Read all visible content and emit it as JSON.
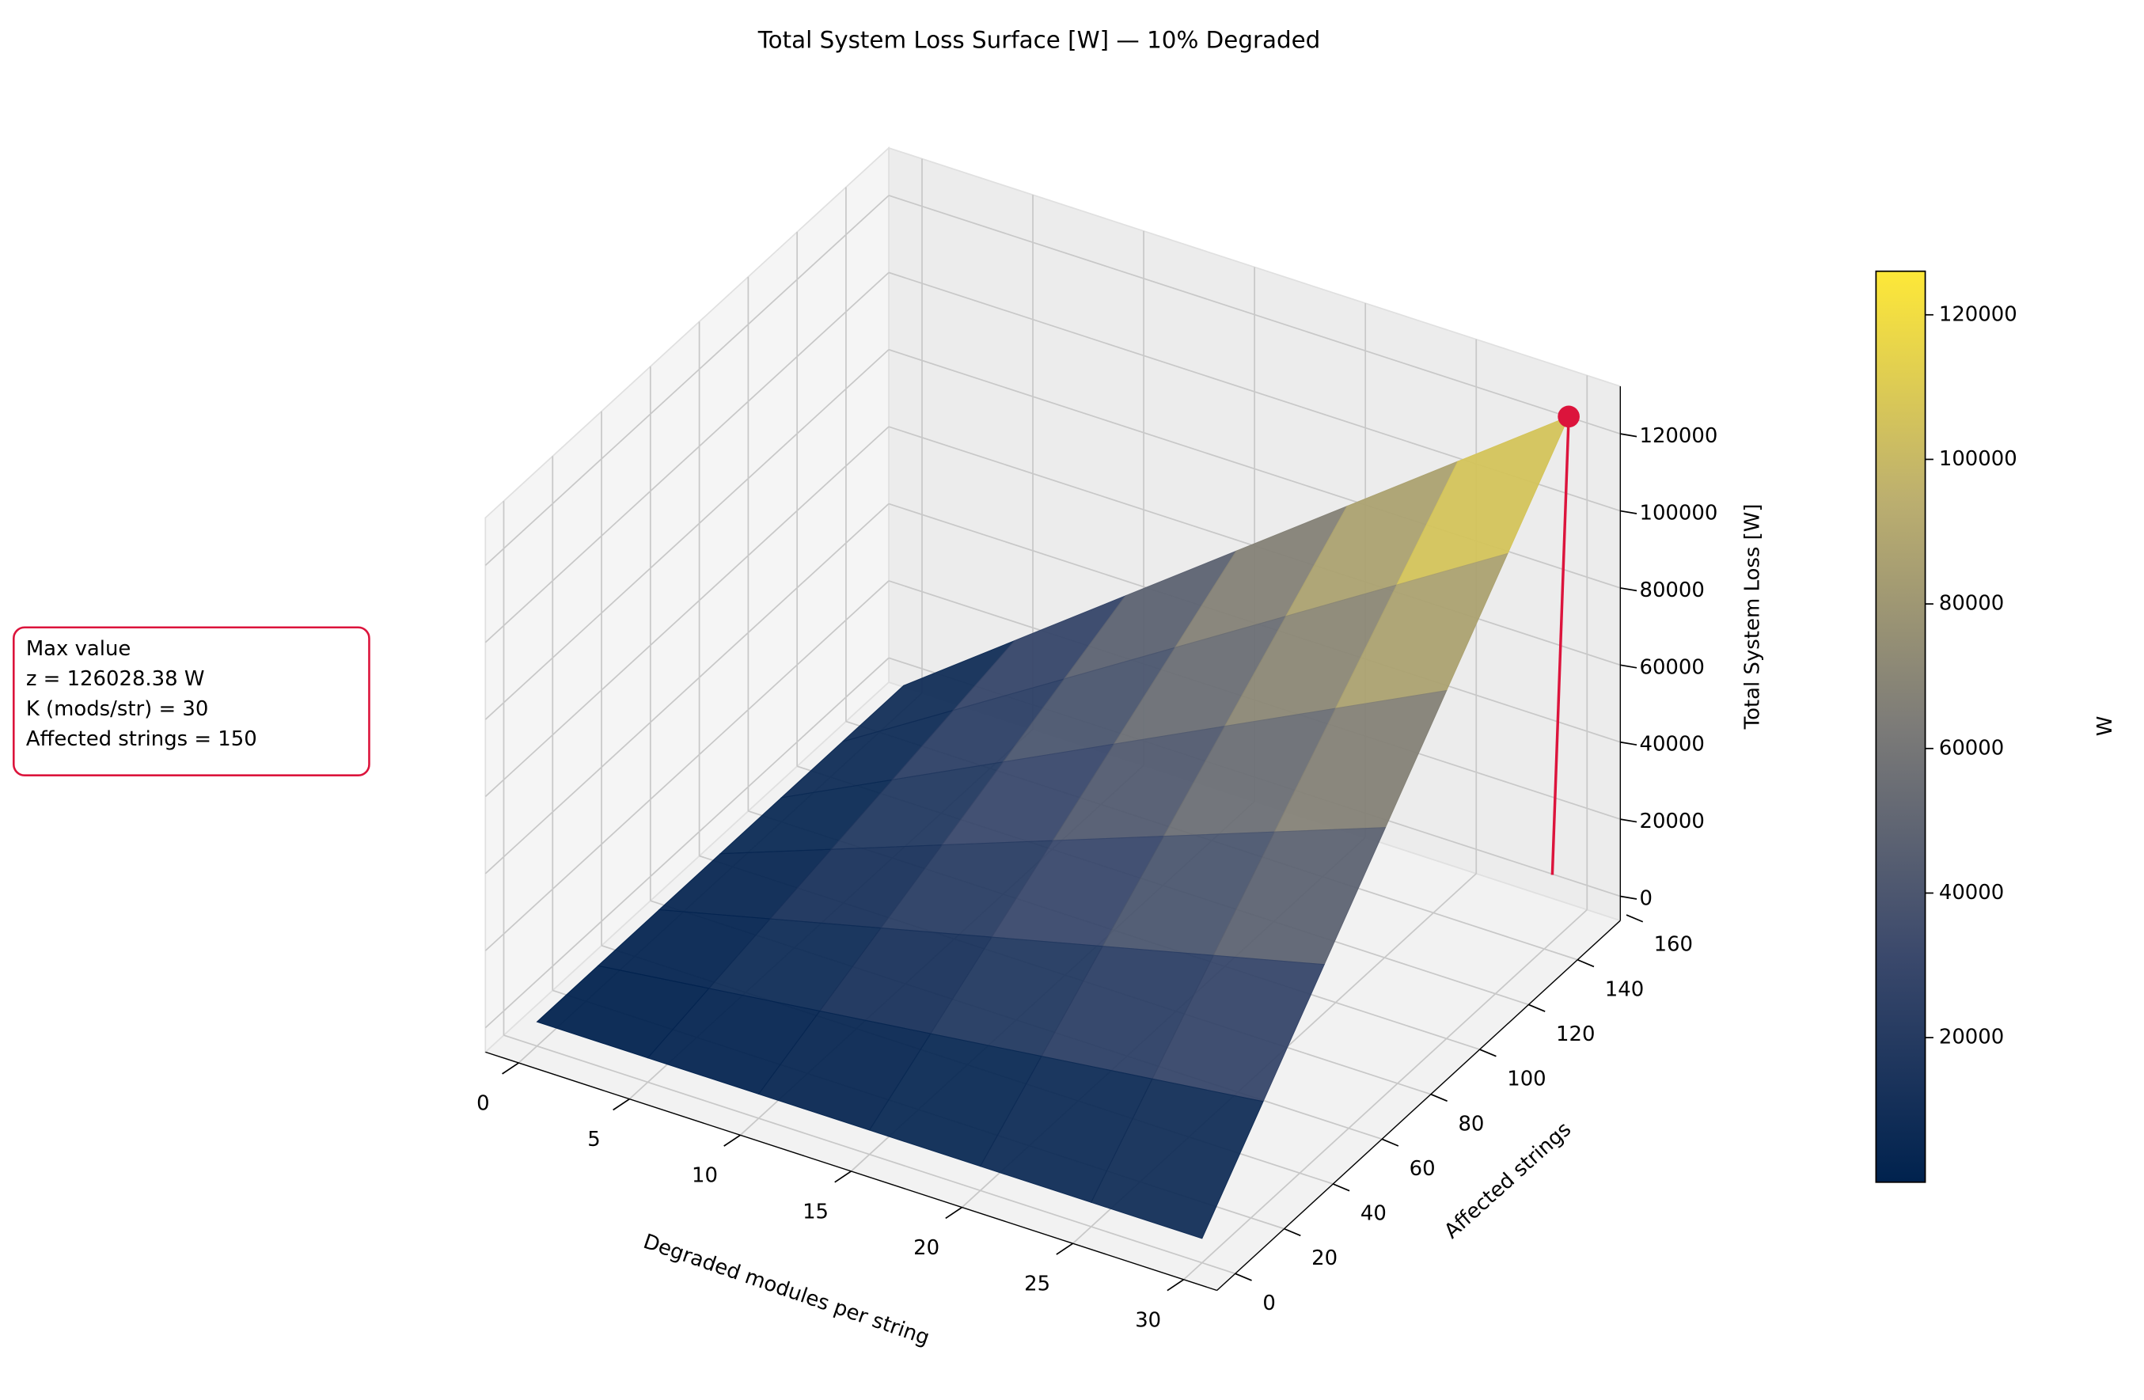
{
  "chart_data": {
    "type": "surface",
    "title": "Total System Loss Surface [W] — 10% Degraded",
    "xlabel": "Degraded modules per string",
    "ylabel": "Affected strings",
    "zlabel": "Total System Loss [W]",
    "x": [
      0,
      5,
      10,
      15,
      20,
      25,
      30
    ],
    "y": [
      0,
      25,
      50,
      75,
      100,
      125,
      150
    ],
    "z": [
      [
        0,
        0,
        0,
        0,
        0,
        0,
        0
      ],
      [
        0,
        3500.8,
        7001.6,
        10502.4,
        14003.2,
        17503.9,
        21004.7
      ],
      [
        0,
        7001.6,
        14003.2,
        21004.7,
        28006.3,
        35007.9,
        42009.5
      ],
      [
        0,
        10502.4,
        21004.7,
        31507.1,
        42009.5,
        52511.8,
        63014.2
      ],
      [
        0,
        14003.2,
        28006.3,
        42009.5,
        56012.6,
        70015.8,
        84018.9
      ],
      [
        0,
        17503.9,
        35007.9,
        52511.8,
        70015.8,
        87519.7,
        105023.7
      ],
      [
        0,
        21004.7,
        42009.5,
        63014.2,
        84018.9,
        105023.7,
        126028.38
      ]
    ],
    "colormap_colors": [
      "#00224e",
      "#3b496c",
      "#7c7b78",
      "#bcaf6f",
      "#fee838"
    ],
    "xlim": [
      -1.5,
      31.5
    ],
    "ylim": [
      -7.5,
      157.5
    ],
    "zlim": [
      -6300,
      132330
    ],
    "xticks": [
      0,
      5,
      10,
      15,
      20,
      25,
      30
    ],
    "yticks": [
      0,
      20,
      40,
      60,
      80,
      100,
      120,
      140,
      160
    ],
    "zticks": [
      0,
      20000,
      40000,
      60000,
      80000,
      100000,
      120000
    ],
    "colorbar": {
      "label": "W",
      "lim": [
        0,
        126028.38
      ],
      "ticks": [
        20000,
        40000,
        60000,
        80000,
        100000,
        120000
      ]
    },
    "marker": {
      "x": 30,
      "y": 150,
      "z": 126028.38,
      "color": "#dc143c"
    },
    "annotation": {
      "lines": [
        "Max value",
        "z = 126028.38 W",
        "K (mods/str) = 30",
        "Affected strings = 150"
      ],
      "color": "#dc143c"
    }
  }
}
